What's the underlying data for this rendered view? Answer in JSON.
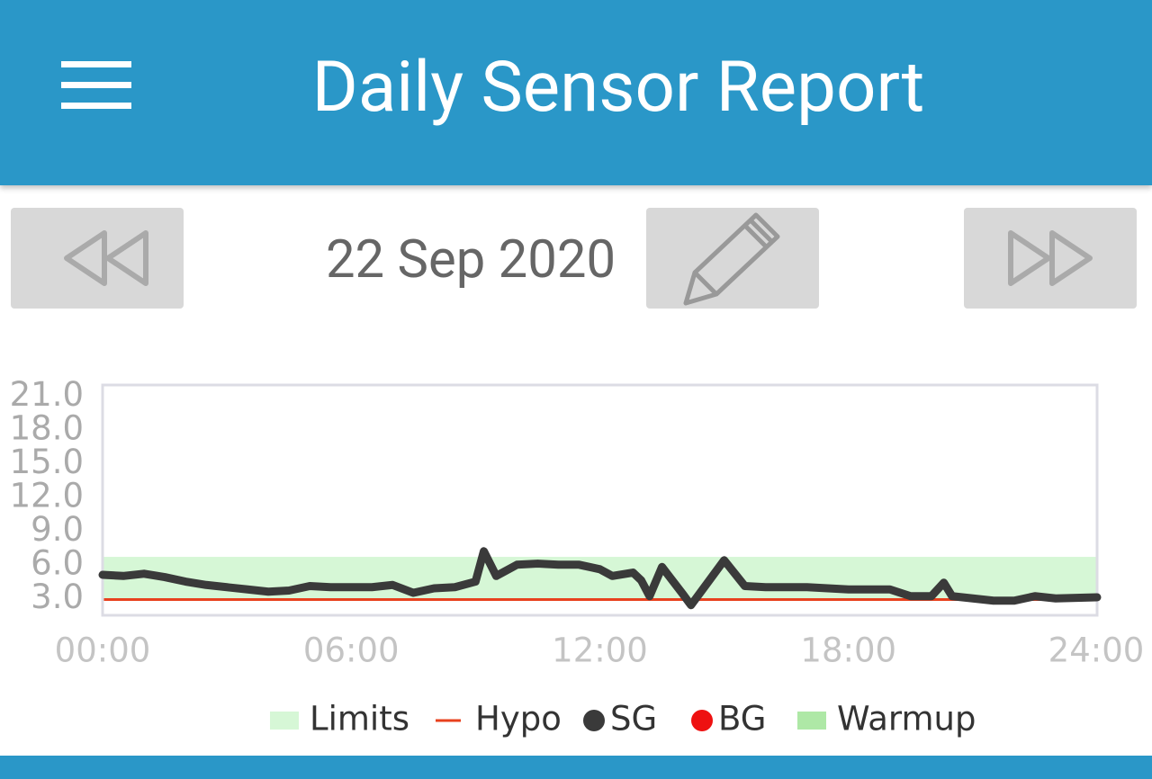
{
  "header": {
    "title": "Daily Sensor Report"
  },
  "date": "22 Sep 2020",
  "chart_data": {
    "type": "line",
    "xlim": [
      0,
      24
    ],
    "xticks": [
      {
        "value": 0,
        "label": "00:00"
      },
      {
        "value": 6,
        "label": "06:00"
      },
      {
        "value": 12,
        "label": "12:00"
      },
      {
        "value": 18,
        "label": "18:00"
      },
      {
        "value": 24,
        "label": "24:00"
      }
    ],
    "ylim": [
      1.5,
      22
    ],
    "yticks": [
      {
        "value": 3,
        "label": "3.0"
      },
      {
        "value": 6,
        "label": "6.0"
      },
      {
        "value": 9,
        "label": "9.0"
      },
      {
        "value": 12,
        "label": "12.0"
      },
      {
        "value": 15,
        "label": "15.0"
      },
      {
        "value": 18,
        "label": "18.0"
      },
      {
        "value": 21,
        "label": "21.0"
      }
    ],
    "limits": [
      2.9,
      6.7
    ],
    "limits_color": "#d6f7d6",
    "hypo": 2.9,
    "hypo_color": "#e8411e",
    "series": [
      {
        "name": "SG",
        "color": "#3a3a3a",
        "x": [
          0,
          0.5,
          1,
          1.5,
          2,
          2.5,
          3,
          3.5,
          4,
          4.5,
          5,
          5.5,
          6,
          6.5,
          7,
          7.5,
          8,
          8.5,
          9,
          9.2,
          9.5,
          10,
          10.5,
          11,
          11.5,
          12,
          12.3,
          12.8,
          13,
          13.2,
          13.5,
          14,
          14.2,
          14.6,
          15,
          15.5,
          16,
          17,
          18,
          19,
          19.5,
          20,
          20.3,
          20.5,
          21,
          21.5,
          22,
          22.5,
          23,
          24
        ],
        "values": [
          5.1,
          5.0,
          5.2,
          4.9,
          4.5,
          4.2,
          4.0,
          3.8,
          3.6,
          3.7,
          4.1,
          4.0,
          4.0,
          4.0,
          4.2,
          3.5,
          3.9,
          4.0,
          4.5,
          7.2,
          5.0,
          6.0,
          6.1,
          6.0,
          6.0,
          5.6,
          5.0,
          5.3,
          4.6,
          3.2,
          5.8,
          3.4,
          2.4,
          4.4,
          6.4,
          4.1,
          4.0,
          4.0,
          3.8,
          3.8,
          3.2,
          3.2,
          4.4,
          3.2,
          3.0,
          2.8,
          2.8,
          3.2,
          3.0,
          3.1
        ]
      }
    ],
    "legend": [
      {
        "name": "Limits",
        "color": "#d6f7d6",
        "marker": "band"
      },
      {
        "name": "Hypo",
        "color": "#e8411e",
        "marker": "line"
      },
      {
        "name": "SG",
        "color": "#3a3a3a",
        "marker": "dot"
      },
      {
        "name": "BG",
        "color": "#ee1111",
        "marker": "dot"
      },
      {
        "name": "Warmup",
        "color": "#aee8a6",
        "marker": "band"
      }
    ]
  }
}
